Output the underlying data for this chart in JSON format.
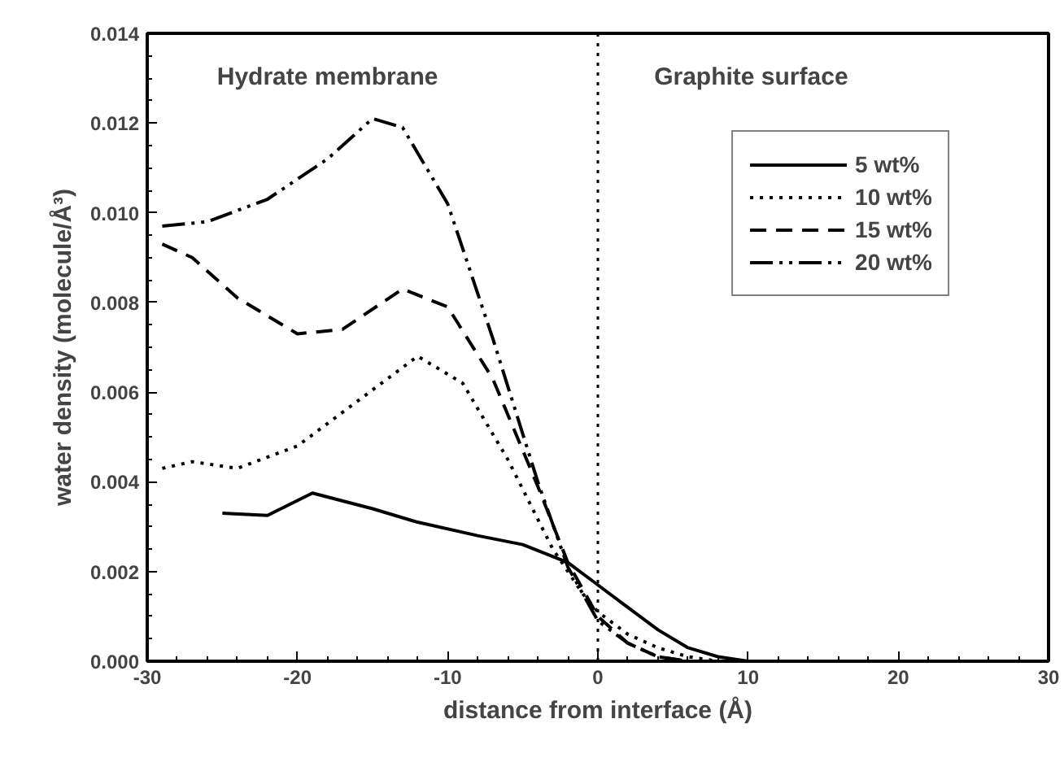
{
  "chart_data": {
    "type": "line",
    "xlabel": "distance from interface (Å)",
    "ylabel": "water density (molecule/Å³)",
    "xlim": [
      -30,
      30
    ],
    "xticks": [
      -30,
      -20,
      -10,
      0,
      10,
      20,
      30
    ],
    "ylim": [
      0,
      0.014
    ],
    "yticks": [
      {
        "value": 0,
        "label": "0.000"
      },
      {
        "value": 0.002,
        "label": "0.002"
      },
      {
        "value": 0.004,
        "label": "0.004"
      },
      {
        "value": 0.006,
        "label": "0.006"
      },
      {
        "value": 0.008,
        "label": "0.008"
      },
      {
        "value": 0.01,
        "label": "0.010"
      },
      {
        "value": 0.012,
        "label": "0.012"
      },
      {
        "value": 0.014,
        "label": "0.014"
      }
    ],
    "grid": false,
    "legend": "top right",
    "ref_lines": [
      {
        "axis": "x",
        "value": 0,
        "color": "#000000",
        "line_style": "dotted"
      }
    ],
    "annotations": [
      "Hydrate membrane",
      "Graphite surface"
    ],
    "series": [
      {
        "name": "5 wt%",
        "color": "#000000",
        "line_style": "solid",
        "x": [
          -25,
          -22,
          -19,
          -15,
          -12,
          -8,
          -5,
          -2,
          0,
          2,
          4,
          6,
          8,
          10,
          12
        ],
        "values": [
          0.0033,
          0.00325,
          0.00375,
          0.0034,
          0.0031,
          0.0028,
          0.0026,
          0.0022,
          0.0017,
          0.0012,
          0.0007,
          0.0003,
          0.0001,
          0.0,
          0.0
        ]
      },
      {
        "name": "10 wt%",
        "color": "#000000",
        "line_style": "dotted",
        "x": [
          -29,
          -27,
          -24,
          -20,
          -16,
          -12,
          -9,
          -6,
          -3,
          -1,
          0,
          2,
          4,
          6,
          8
        ],
        "values": [
          0.0043,
          0.00445,
          0.0043,
          0.0048,
          0.0058,
          0.0068,
          0.0062,
          0.0045,
          0.0025,
          0.0015,
          0.0011,
          0.0006,
          0.0003,
          0.0001,
          0.0
        ]
      },
      {
        "name": "15 wt%",
        "color": "#000000",
        "line_style": "dashed",
        "x": [
          -29,
          -27,
          -24,
          -20,
          -17,
          -13,
          -10,
          -7,
          -4,
          -2,
          0,
          2,
          4,
          6
        ],
        "values": [
          0.0093,
          0.009,
          0.0081,
          0.0073,
          0.0074,
          0.0083,
          0.0079,
          0.0063,
          0.0039,
          0.0022,
          0.001,
          0.0004,
          0.0001,
          0.0
        ]
      },
      {
        "name": "20 wt%",
        "color": "#000000",
        "line_style": "dashdot",
        "x": [
          -29,
          -26,
          -22,
          -18,
          -15,
          -13,
          -10,
          -7,
          -4,
          -2,
          0,
          2,
          4,
          6
        ],
        "values": [
          0.0097,
          0.0098,
          0.0103,
          0.0112,
          0.0121,
          0.0119,
          0.0102,
          0.0072,
          0.004,
          0.0021,
          0.0009,
          0.0004,
          0.0001,
          0.0
        ]
      }
    ]
  }
}
